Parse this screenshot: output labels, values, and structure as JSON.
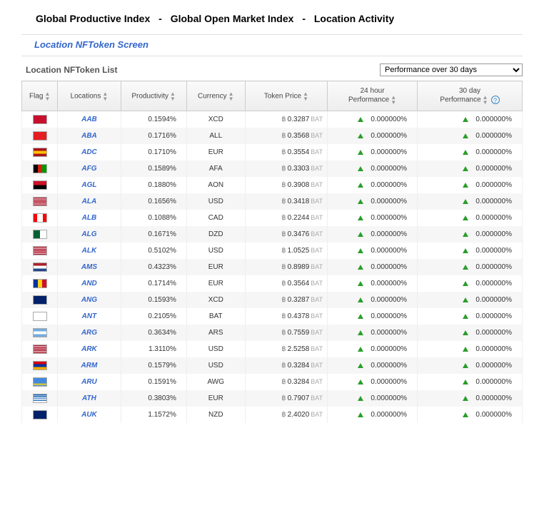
{
  "nav": {
    "item1": "Global Productive Index",
    "item2": "Global Open Market Index",
    "item3": "Location Activity",
    "sep": "-"
  },
  "screen_title": "Location NFToken Screen",
  "list_title": "Location NFToken List",
  "dropdown": {
    "selected": "Performance over 30 days"
  },
  "columns": {
    "flag": "Flag",
    "locations": "Locations",
    "productivity": "Productivity",
    "currency": "Currency",
    "token_price": "Token Price",
    "perf24": "24 hour\nPerformance",
    "perf30": "30 day\nPerformance"
  },
  "bat_symbol": "฿",
  "bat_unit": "BAT",
  "help": "?",
  "flags": {
    "AAB": {
      "bg": "#c8102e",
      "stripes": []
    },
    "ABA": {
      "bg": "#e41e20",
      "stripes": []
    },
    "ADC": {
      "bg": "#ffc400",
      "stripes": [
        [
          "h",
          "#aa151b",
          0,
          33
        ],
        [
          "h",
          "#aa151b",
          66,
          100
        ]
      ]
    },
    "AFG": {
      "bg": "#009900",
      "stripes": [
        [
          "v",
          "#000000",
          0,
          33
        ],
        [
          "v",
          "#d32011",
          33,
          66
        ]
      ]
    },
    "AGL": {
      "bg": "#ce1126",
      "stripes": [
        [
          "h",
          "#000000",
          50,
          100
        ]
      ]
    },
    "ALA": {
      "bg": "#b22234",
      "stripes": [
        [
          "h",
          "#ffffff",
          14,
          21
        ],
        [
          "h",
          "#ffffff",
          35,
          42
        ],
        [
          "h",
          "#ffffff",
          57,
          64
        ],
        [
          "h",
          "#ffffff",
          78,
          85
        ]
      ]
    },
    "ALB": {
      "bg": "#ffffff",
      "stripes": [
        [
          "v",
          "#ff0000",
          0,
          28
        ],
        [
          "v",
          "#ff0000",
          72,
          100
        ]
      ]
    },
    "ALG": {
      "bg": "#ffffff",
      "stripes": [
        [
          "v",
          "#006233",
          0,
          50
        ]
      ]
    },
    "ALK": {
      "bg": "#b22234",
      "stripes": [
        [
          "h",
          "#ffffff",
          14,
          21
        ],
        [
          "h",
          "#ffffff",
          35,
          42
        ],
        [
          "h",
          "#ffffff",
          57,
          64
        ],
        [
          "h",
          "#ffffff",
          78,
          85
        ]
      ]
    },
    "AMS": {
      "bg": "#ffffff",
      "stripes": [
        [
          "h",
          "#ae1c28",
          0,
          33
        ],
        [
          "h",
          "#21468b",
          66,
          100
        ]
      ]
    },
    "AND": {
      "bg": "#fcd116",
      "stripes": [
        [
          "v",
          "#0033a0",
          0,
          33
        ],
        [
          "v",
          "#ce1126",
          66,
          100
        ]
      ]
    },
    "ANG": {
      "bg": "#012169",
      "stripes": []
    },
    "ANT": {
      "bg": "#ffffff",
      "stripes": []
    },
    "ARG": {
      "bg": "#ffffff",
      "stripes": [
        [
          "h",
          "#74acdf",
          0,
          33
        ],
        [
          "h",
          "#74acdf",
          66,
          100
        ]
      ]
    },
    "ARK": {
      "bg": "#b22234",
      "stripes": [
        [
          "h",
          "#ffffff",
          14,
          21
        ],
        [
          "h",
          "#ffffff",
          35,
          42
        ],
        [
          "h",
          "#ffffff",
          57,
          64
        ],
        [
          "h",
          "#ffffff",
          78,
          85
        ]
      ]
    },
    "ARM": {
      "bg": "#0033a0",
      "stripes": [
        [
          "h",
          "#d90012",
          0,
          33
        ],
        [
          "h",
          "#f2a800",
          66,
          100
        ]
      ]
    },
    "ARU": {
      "bg": "#4189dd",
      "stripes": [
        [
          "h",
          "#f9d616",
          70,
          78
        ],
        [
          "h",
          "#f9d616",
          84,
          92
        ]
      ]
    },
    "ATH": {
      "bg": "#ffffff",
      "stripes": [
        [
          "h",
          "#0d5eaf",
          0,
          12
        ],
        [
          "h",
          "#0d5eaf",
          24,
          36
        ],
        [
          "h",
          "#0d5eaf",
          48,
          60
        ],
        [
          "h",
          "#0d5eaf",
          72,
          84
        ]
      ]
    },
    "AUK": {
      "bg": "#012169",
      "stripes": []
    }
  },
  "rows": [
    {
      "code": "AAB",
      "prod": "0.1594%",
      "curr": "XCD",
      "price": "0.3287",
      "p24": "0.000000%",
      "p30": "0.000000%"
    },
    {
      "code": "ABA",
      "prod": "0.1716%",
      "curr": "ALL",
      "price": "0.3568",
      "p24": "0.000000%",
      "p30": "0.000000%"
    },
    {
      "code": "ADC",
      "prod": "0.1710%",
      "curr": "EUR",
      "price": "0.3554",
      "p24": "0.000000%",
      "p30": "0.000000%"
    },
    {
      "code": "AFG",
      "prod": "0.1589%",
      "curr": "AFA",
      "price": "0.3303",
      "p24": "0.000000%",
      "p30": "0.000000%"
    },
    {
      "code": "AGL",
      "prod": "0.1880%",
      "curr": "AON",
      "price": "0.3908",
      "p24": "0.000000%",
      "p30": "0.000000%"
    },
    {
      "code": "ALA",
      "prod": "0.1656%",
      "curr": "USD",
      "price": "0.3418",
      "p24": "0.000000%",
      "p30": "0.000000%"
    },
    {
      "code": "ALB",
      "prod": "0.1088%",
      "curr": "CAD",
      "price": "0.2244",
      "p24": "0.000000%",
      "p30": "0.000000%"
    },
    {
      "code": "ALG",
      "prod": "0.1671%",
      "curr": "DZD",
      "price": "0.3476",
      "p24": "0.000000%",
      "p30": "0.000000%"
    },
    {
      "code": "ALK",
      "prod": "0.5102%",
      "curr": "USD",
      "price": "1.0525",
      "p24": "0.000000%",
      "p30": "0.000000%"
    },
    {
      "code": "AMS",
      "prod": "0.4323%",
      "curr": "EUR",
      "price": "0.8989",
      "p24": "0.000000%",
      "p30": "0.000000%"
    },
    {
      "code": "AND",
      "prod": "0.1714%",
      "curr": "EUR",
      "price": "0.3564",
      "p24": "0.000000%",
      "p30": "0.000000%"
    },
    {
      "code": "ANG",
      "prod": "0.1593%",
      "curr": "XCD",
      "price": "0.3287",
      "p24": "0.000000%",
      "p30": "0.000000%"
    },
    {
      "code": "ANT",
      "prod": "0.2105%",
      "curr": "BAT",
      "price": "0.4378",
      "p24": "0.000000%",
      "p30": "0.000000%"
    },
    {
      "code": "ARG",
      "prod": "0.3634%",
      "curr": "ARS",
      "price": "0.7559",
      "p24": "0.000000%",
      "p30": "0.000000%"
    },
    {
      "code": "ARK",
      "prod": "1.3110%",
      "curr": "USD",
      "price": "2.5258",
      "p24": "0.000000%",
      "p30": "0.000000%"
    },
    {
      "code": "ARM",
      "prod": "0.1579%",
      "curr": "USD",
      "price": "0.3284",
      "p24": "0.000000%",
      "p30": "0.000000%"
    },
    {
      "code": "ARU",
      "prod": "0.1591%",
      "curr": "AWG",
      "price": "0.3284",
      "p24": "0.000000%",
      "p30": "0.000000%"
    },
    {
      "code": "ATH",
      "prod": "0.3803%",
      "curr": "EUR",
      "price": "0.7907",
      "p24": "0.000000%",
      "p30": "0.000000%"
    },
    {
      "code": "AUK",
      "prod": "1.1572%",
      "curr": "NZD",
      "price": "2.4020",
      "p24": "0.000000%",
      "p30": "0.000000%"
    }
  ]
}
